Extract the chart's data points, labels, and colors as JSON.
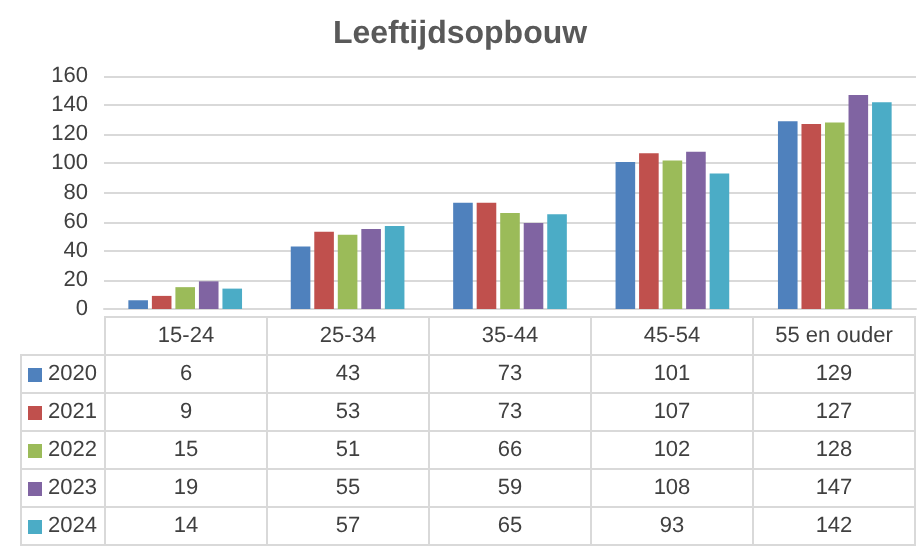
{
  "chart_data": {
    "type": "bar",
    "title": "Leeftijdsopbouw",
    "categories": [
      "15-24",
      "25-34",
      "35-44",
      "45-54",
      "55 en ouder"
    ],
    "series": [
      {
        "name": "2020",
        "color": "#4f81bd",
        "values": [
          6,
          43,
          73,
          101,
          129
        ]
      },
      {
        "name": "2021",
        "color": "#c0504d",
        "values": [
          9,
          53,
          73,
          107,
          127
        ]
      },
      {
        "name": "2022",
        "color": "#9bbb59",
        "values": [
          15,
          51,
          66,
          102,
          128
        ]
      },
      {
        "name": "2023",
        "color": "#8064a2",
        "values": [
          19,
          55,
          59,
          108,
          147
        ]
      },
      {
        "name": "2024",
        "color": "#4bacc6",
        "values": [
          14,
          57,
          65,
          93,
          142
        ]
      }
    ],
    "ylim": [
      0,
      160
    ],
    "yticks": [
      0,
      20,
      40,
      60,
      80,
      100,
      120,
      140,
      160
    ],
    "grid": "y",
    "legend": "bottom",
    "data_labels": true
  }
}
